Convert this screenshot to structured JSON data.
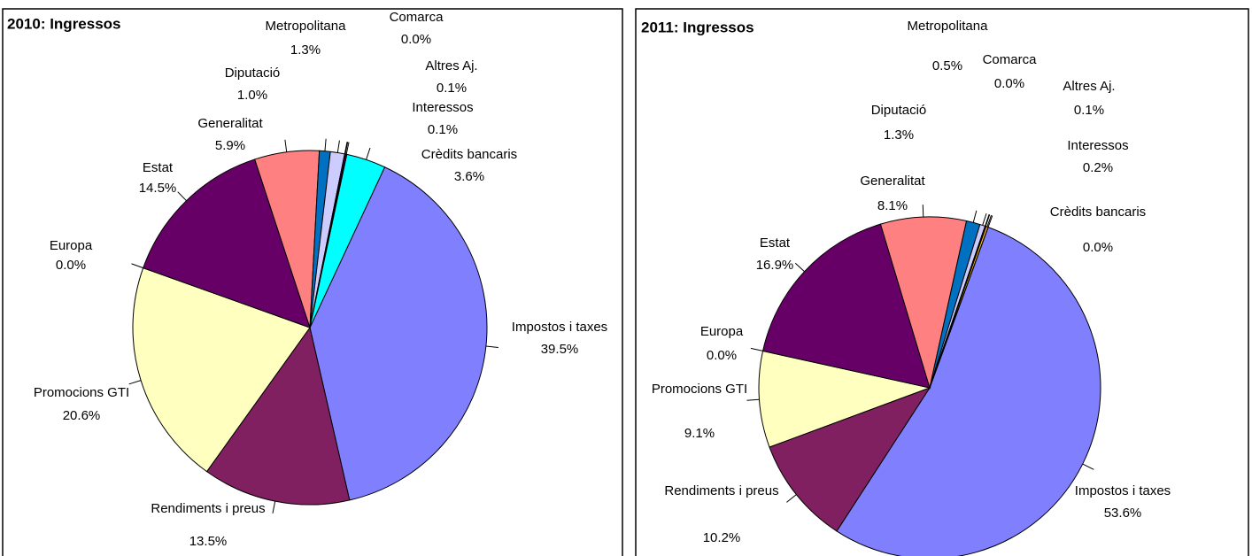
{
  "chart_data": [
    {
      "type": "pie",
      "title": "2010: Ingressos",
      "categories": [
        "Impostos i taxes",
        "Rendiments i preus",
        "Promocions GTI",
        "Europa",
        "Estat",
        "Generalitat",
        "Diputació",
        "Metropolitana",
        "Comarca",
        "Altres Aj.",
        "Interessos",
        "Crèdits bancaris"
      ],
      "values": [
        39.5,
        13.5,
        20.6,
        0.0,
        14.5,
        5.9,
        1.0,
        1.3,
        0.0,
        0.1,
        0.1,
        3.6
      ],
      "value_labels": [
        "39.5%",
        "13.5%",
        "20.6%",
        "0.0%",
        "14.5%",
        "5.9%",
        "1.0%",
        "1.3%",
        "0.0%",
        "0.1%",
        "0.1%",
        "3.6%"
      ],
      "colors": [
        "#8080ff",
        "#802060",
        "#ffffc0",
        "#a0e0e0",
        "#660066",
        "#ff8080",
        "#0070c0",
        "#ccccff",
        "#000080",
        "#ff00ff",
        "#cc00cc",
        "#00ffff"
      ]
    },
    {
      "type": "pie",
      "title": "2011: Ingressos",
      "categories": [
        "Impostos i taxes",
        "Rendiments i preus",
        "Promocions GTI",
        "Europa",
        "Estat",
        "Generalitat",
        "Diputació",
        "Metropolitana",
        "Comarca",
        "Altres Aj.",
        "Interessos",
        "Crèdits bancaris"
      ],
      "values": [
        53.6,
        10.2,
        9.1,
        0.0,
        16.9,
        8.1,
        1.3,
        0.5,
        0.0,
        0.1,
        0.2,
        0.0
      ],
      "value_labels": [
        "53.6%",
        "10.2%",
        "9.1%",
        "0.0%",
        "16.9%",
        "8.1%",
        "1.3%",
        "0.5%",
        "0.0%",
        "0.1%",
        "0.2%",
        "0.0%"
      ],
      "colors": [
        "#8080ff",
        "#802060",
        "#ffffc0",
        "#a0e0e0",
        "#660066",
        "#ff8080",
        "#0070c0",
        "#ccccff",
        "#000080",
        "#ff00ff",
        "#ffc000",
        "#ffff80"
      ]
    }
  ]
}
